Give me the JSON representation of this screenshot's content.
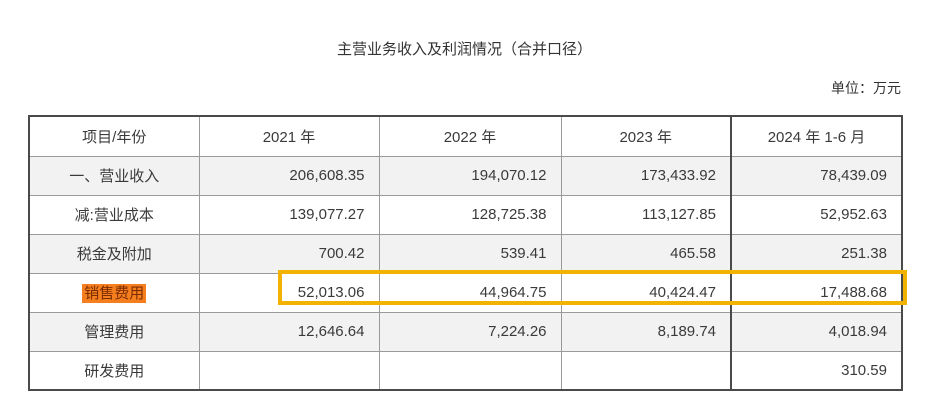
{
  "title": "主营业务收入及利润情况（合并口径）",
  "unit_label": "单位：万元",
  "table": {
    "headers": [
      "项目/年份",
      "2021 年",
      "2022 年",
      "2023 年",
      "2024 年 1-6 月"
    ],
    "rows": [
      {
        "label": "一、营业收入",
        "values": [
          "206,608.35",
          "194,070.12",
          "173,433.92",
          "78,439.09"
        ],
        "highlighted": false
      },
      {
        "label": "减:营业成本",
        "values": [
          "139,077.27",
          "128,725.38",
          "113,127.85",
          "52,952.63"
        ],
        "highlighted": false
      },
      {
        "label": "税金及附加",
        "values": [
          "700.42",
          "539.41",
          "465.58",
          "251.38"
        ],
        "highlighted": false
      },
      {
        "label": "销售费用",
        "values": [
          "52,013.06",
          "44,964.75",
          "40,424.47",
          "17,488.68"
        ],
        "highlighted": true
      },
      {
        "label": "管理费用",
        "values": [
          "12,646.64",
          "7,224.26",
          "8,189.74",
          "4,018.94"
        ],
        "highlighted": false
      },
      {
        "label": "研发费用",
        "values": [
          "",
          "",
          "",
          "310.59"
        ],
        "highlighted": false
      }
    ]
  },
  "colors": {
    "highlight_background": "#F57E1E",
    "highlight_text": "#7C2D00",
    "highlight_box_border": "#F2B200",
    "row_alt_background": "#F2F2F2"
  }
}
